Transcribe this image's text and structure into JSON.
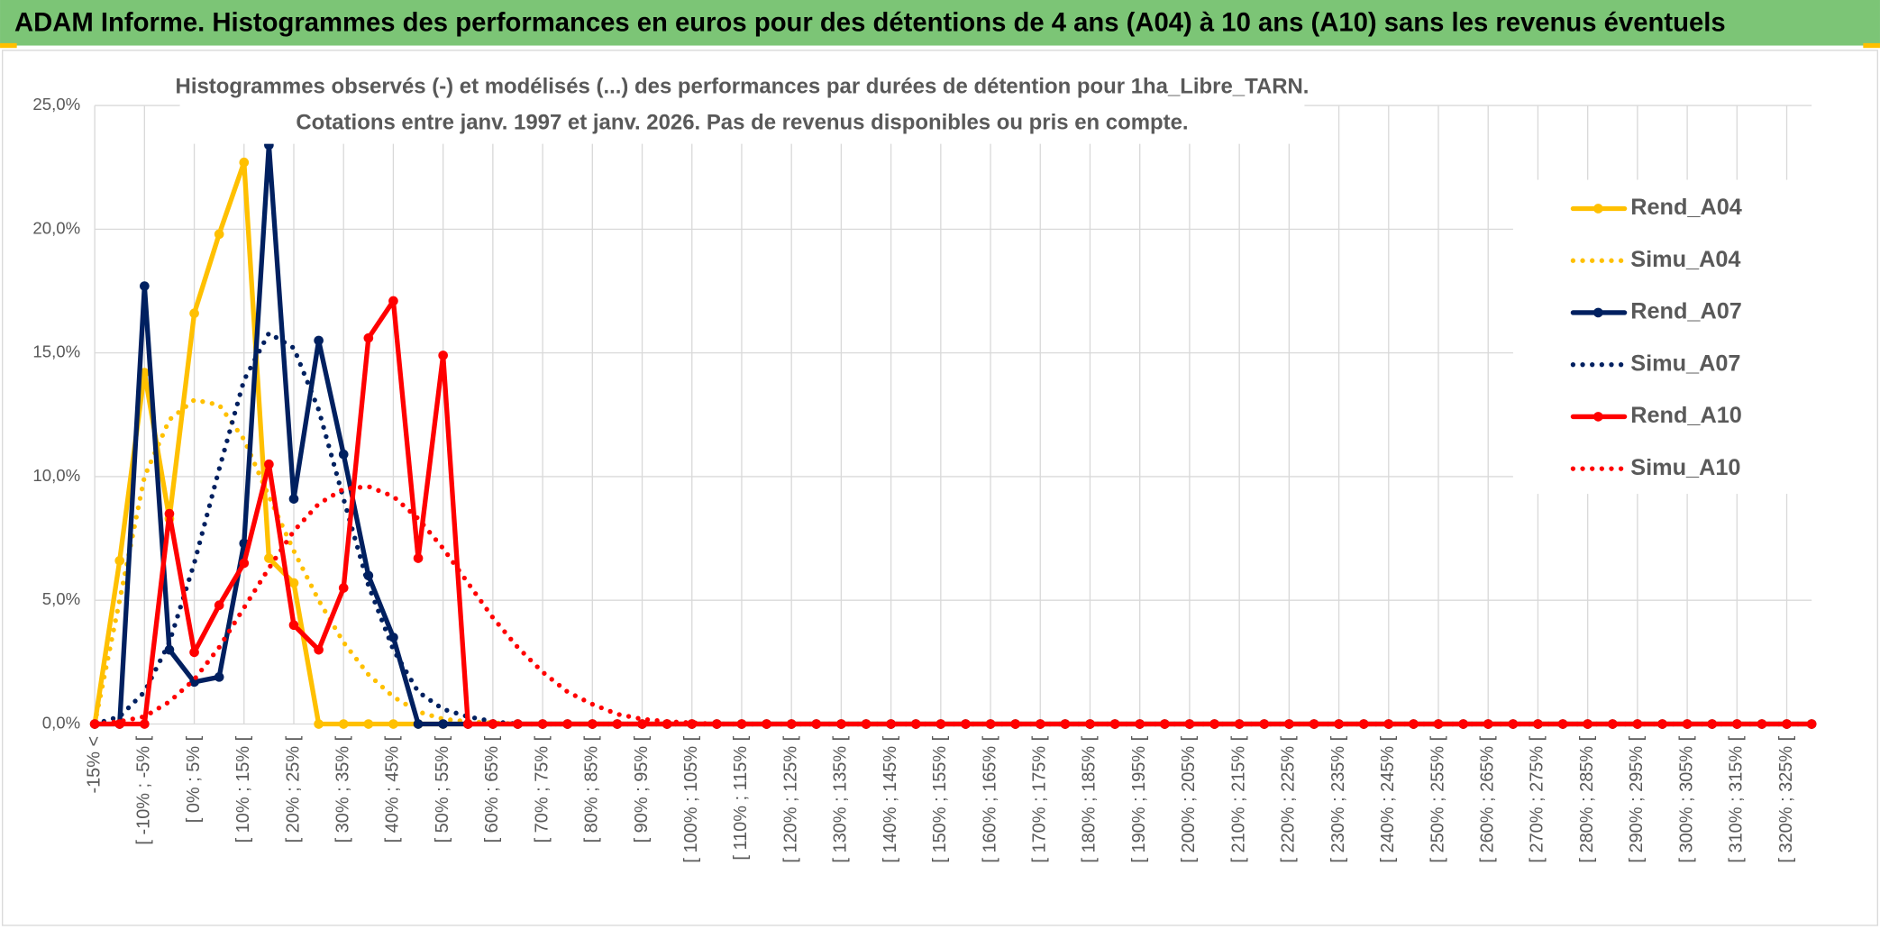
{
  "header": {
    "title": "ADAM Informe. Histogrammes des performances en euros pour des détentions de 4 ans (A04) à 10 ans (A10) sans les revenus éventuels"
  },
  "chart_data": {
    "type": "line",
    "title": "Histogrammes observés (-) et modélisés (...) des performances par durées de détention pour 1ha_Libre_TARN.",
    "subtitle": "Cotations entre janv. 1997 et janv. 2026. Pas de revenus disponibles ou pris en compte.",
    "categories": [
      "-15% <",
      null,
      "[ -10% ; -5% [",
      null,
      "[ 0% ; 5% [",
      null,
      "[ 10% ; 15% [",
      null,
      "[ 20% ; 25% [",
      null,
      "[ 30% ; 35% [",
      null,
      "[ 40% ; 45% [",
      null,
      "[ 50% ; 55% [",
      null,
      "[ 60% ; 65% [",
      null,
      "[ 70% ; 75% [",
      null,
      "[ 80% ; 85% [",
      null,
      "[ 90% ; 95% [",
      null,
      "[ 100% ; 105% [",
      null,
      "[ 110% ; 115% [",
      null,
      "[ 120% ; 125% [",
      null,
      "[ 130% ; 135% [",
      null,
      "[ 140% ; 145% [",
      null,
      "[ 150% ; 155% [",
      null,
      "[ 160% ; 165% [",
      null,
      "[ 170% ; 175% [",
      null,
      "[ 180% ; 185% [",
      null,
      "[ 190% ; 195% [",
      null,
      "[ 200% ; 205% [",
      null,
      "[ 210% ; 215% [",
      null,
      "[ 220% ; 225% [",
      null,
      "[ 230% ; 235% [",
      null,
      "[ 240% ; 245% [",
      null,
      "[ 250% ; 255% [",
      null,
      "[ 260% ; 265% [",
      null,
      "[ 270% ; 275% [",
      null,
      "[ 280% ; 285% [",
      null,
      "[ 290% ; 295% [",
      null,
      "[ 300% ; 305% [",
      null,
      "[ 310% ; 315% [",
      null,
      "[ 320% ; 325% [",
      null
    ],
    "series": [
      {
        "name": "Rend_A04",
        "color": "#FFC000",
        "style": "solid",
        "markers": true,
        "values": [
          0,
          6.6,
          14.2,
          8.3,
          16.6,
          19.8,
          22.7,
          6.7,
          5.7,
          0,
          0,
          0,
          0,
          0,
          0,
          0,
          0,
          0,
          0,
          0,
          0,
          0,
          0,
          0,
          0,
          0,
          0,
          0,
          0,
          0,
          0,
          0,
          0,
          0,
          0,
          0,
          0,
          0,
          0,
          0,
          0,
          0,
          0,
          0,
          0,
          0,
          0,
          0,
          0,
          0,
          0,
          0,
          0,
          0,
          0,
          0,
          0,
          0,
          0,
          0,
          0,
          0,
          0,
          0,
          0,
          0,
          0,
          0,
          0,
          0
        ]
      },
      {
        "name": "Simu_A04",
        "color": "#FFC000",
        "style": "dotted",
        "markers": false,
        "values": [
          0,
          5,
          10,
          12.3,
          13.1,
          12.9,
          11.5,
          9.2,
          7.0,
          5.0,
          3.3,
          2.0,
          1.1,
          0.5,
          0.2,
          0.1,
          0.05,
          0,
          0,
          0,
          0,
          0,
          0,
          0,
          0,
          0,
          0,
          0,
          0,
          0,
          0,
          0,
          0,
          0,
          0,
          0,
          0,
          0,
          0,
          0,
          0,
          0,
          0,
          0,
          0,
          0,
          0,
          0,
          0,
          0,
          0,
          0,
          0,
          0,
          0,
          0,
          0,
          0,
          0,
          0,
          0,
          0,
          0,
          0,
          0,
          0,
          0,
          0,
          0,
          0
        ]
      },
      {
        "name": "Rend_A07",
        "color": "#002060",
        "style": "solid",
        "markers": true,
        "values": [
          0,
          0,
          17.7,
          3.0,
          1.7,
          1.9,
          7.3,
          23.4,
          9.1,
          15.5,
          10.9,
          6.0,
          3.5,
          0,
          0,
          0,
          0,
          0,
          0,
          0,
          0,
          0,
          0,
          0,
          0,
          0,
          0,
          0,
          0,
          0,
          0,
          0,
          0,
          0,
          0,
          0,
          0,
          0,
          0,
          0,
          0,
          0,
          0,
          0,
          0,
          0,
          0,
          0,
          0,
          0,
          0,
          0,
          0,
          0,
          0,
          0,
          0,
          0,
          0,
          0,
          0,
          0,
          0,
          0,
          0,
          0,
          0,
          0,
          0,
          0
        ]
      },
      {
        "name": "Simu_A07",
        "color": "#002060",
        "style": "dotted",
        "markers": false,
        "values": [
          0,
          0.3,
          1.3,
          3.3,
          6.5,
          10.3,
          13.9,
          15.8,
          15.2,
          12.7,
          9.1,
          5.6,
          3.0,
          1.3,
          0.6,
          0.3,
          0.1,
          0,
          0,
          0,
          0,
          0,
          0,
          0,
          0,
          0,
          0,
          0,
          0,
          0,
          0,
          0,
          0,
          0,
          0,
          0,
          0,
          0,
          0,
          0,
          0,
          0,
          0,
          0,
          0,
          0,
          0,
          0,
          0,
          0,
          0,
          0,
          0,
          0,
          0,
          0,
          0,
          0,
          0,
          0,
          0,
          0,
          0,
          0,
          0,
          0,
          0,
          0,
          0,
          0
        ]
      },
      {
        "name": "Rend_A10",
        "color": "#FF0000",
        "style": "solid",
        "markers": true,
        "values": [
          0,
          0,
          0,
          8.5,
          2.9,
          4.8,
          6.5,
          10.5,
          4.0,
          3.0,
          5.5,
          15.6,
          17.1,
          6.7,
          14.9,
          0,
          0,
          0,
          0,
          0,
          0,
          0,
          0,
          0,
          0,
          0,
          0,
          0,
          0,
          0,
          0,
          0,
          0,
          0,
          0,
          0,
          0,
          0,
          0,
          0,
          0,
          0,
          0,
          0,
          0,
          0,
          0,
          0,
          0,
          0,
          0,
          0,
          0,
          0,
          0,
          0,
          0,
          0,
          0,
          0,
          0,
          0,
          0,
          0,
          0,
          0,
          0,
          0,
          0,
          0
        ]
      },
      {
        "name": "Simu_A10",
        "color": "#FF0000",
        "style": "dotted",
        "markers": false,
        "values": [
          0,
          0.1,
          0.3,
          0.9,
          1.8,
          3.1,
          4.7,
          6.3,
          7.8,
          8.9,
          9.5,
          9.6,
          9.2,
          8.3,
          7.1,
          5.7,
          4.3,
          3.1,
          2.1,
          1.3,
          0.8,
          0.4,
          0.2,
          0.1,
          0.05,
          0,
          0,
          0,
          0,
          0,
          0,
          0,
          0,
          0,
          0,
          0,
          0,
          0,
          0,
          0,
          0,
          0,
          0,
          0,
          0,
          0,
          0,
          0,
          0,
          0,
          0,
          0,
          0,
          0,
          0,
          0,
          0,
          0,
          0,
          0,
          0,
          0,
          0,
          0,
          0,
          0,
          0,
          0,
          0,
          0
        ]
      }
    ],
    "ylim": [
      0,
      25
    ],
    "yticks": [
      {
        "value": 0,
        "label": "0,0%"
      },
      {
        "value": 5,
        "label": "5,0%"
      },
      {
        "value": 10,
        "label": "10,0%"
      },
      {
        "value": 15,
        "label": "15,0%"
      },
      {
        "value": 20,
        "label": "20,0%"
      },
      {
        "value": 25,
        "label": "25,0%"
      }
    ],
    "grid": true,
    "legend": "right"
  }
}
